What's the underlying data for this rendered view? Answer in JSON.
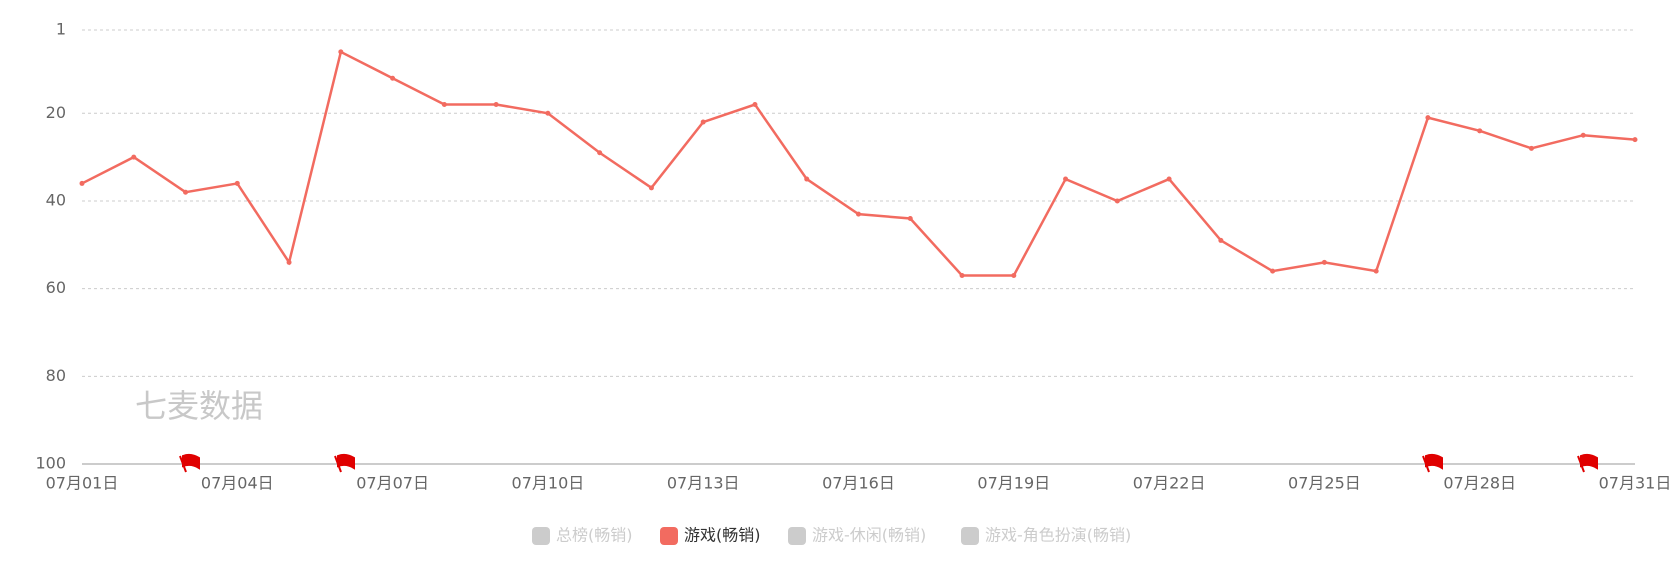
{
  "chart_data": {
    "type": "line",
    "categories": [
      "07月01日",
      null,
      null,
      "07月04日",
      null,
      null,
      "07月07日",
      null,
      null,
      "07月10日",
      null,
      null,
      "07月13日",
      null,
      null,
      "07月16日",
      null,
      null,
      "07月19日",
      null,
      null,
      "07月22日",
      null,
      null,
      "07月25日",
      null,
      null,
      "07月28日",
      null,
      null,
      "07月31日"
    ],
    "series": [
      {
        "name": "总榜(畅销)",
        "color": "#cccccc",
        "visible": false
      },
      {
        "name": "游戏(畅销)",
        "color": "#f26b60",
        "visible": true,
        "values": [
          36,
          30,
          38,
          36,
          54,
          6,
          12,
          18,
          18,
          20,
          29,
          37,
          22,
          18,
          35,
          43,
          44,
          57,
          57,
          35,
          40,
          35,
          49,
          56,
          54,
          56,
          21,
          24,
          28,
          25,
          26
        ]
      },
      {
        "name": "游戏-休闲(畅销)",
        "color": "#cccccc",
        "visible": false
      },
      {
        "name": "游戏-角色扮演(畅销)",
        "color": "#cccccc",
        "visible": false
      }
    ],
    "ylim": [
      1,
      100
    ],
    "y_inverted": true,
    "yticks": [
      1,
      20,
      40,
      60,
      80,
      100
    ],
    "grid": true,
    "watermark": "七麦数据"
  }
}
